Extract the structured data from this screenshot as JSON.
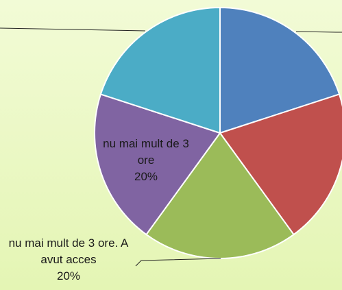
{
  "chart_data": {
    "type": "pie",
    "categories": [
      null,
      null,
      "nu mai mult de 3 ore. A avut acces",
      "nu mai mult de 3 ore",
      null
    ],
    "values": [
      20,
      20,
      20,
      20,
      20
    ],
    "value_labels": [
      null,
      null,
      "20%",
      "20%",
      null
    ],
    "colors": [
      "#4f81bd",
      "#c0504d",
      "#9bbb59",
      "#8064a2",
      "#4bacc6"
    ]
  }
}
